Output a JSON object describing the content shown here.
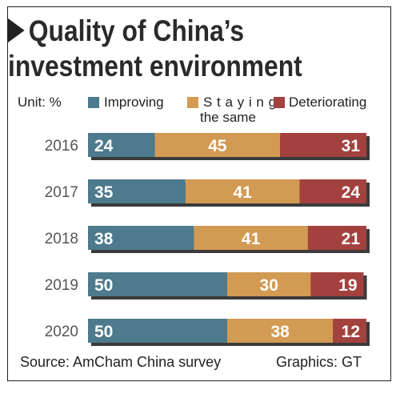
{
  "title": {
    "line1": "Quality of China’s",
    "line2": "investment environment"
  },
  "legend": {
    "unit": "Unit: %",
    "improving": "Improving",
    "staying_line1": "S t a y i n g",
    "staying_line2": "the same",
    "deteriorating": "Deteriorating"
  },
  "footer": {
    "source": "Source: AmCham China survey",
    "credit": "Graphics: GT"
  },
  "colors": {
    "improving": "#4d7a8c",
    "staying": "#d39a53",
    "deteriorating": "#a3413f",
    "shadow": "#3b3b3b"
  },
  "chart_data": {
    "type": "bar",
    "orientation": "horizontal-stacked",
    "unit": "%",
    "categories": [
      "2016",
      "2017",
      "2018",
      "2019",
      "2020"
    ],
    "series": [
      {
        "name": "Improving",
        "values": [
          24,
          35,
          38,
          50,
          50
        ]
      },
      {
        "name": "Staying the same",
        "values": [
          45,
          41,
          41,
          30,
          38
        ]
      },
      {
        "name": "Deteriorating",
        "values": [
          31,
          24,
          21,
          19,
          12
        ]
      }
    ],
    "xlim": [
      0,
      100
    ]
  }
}
